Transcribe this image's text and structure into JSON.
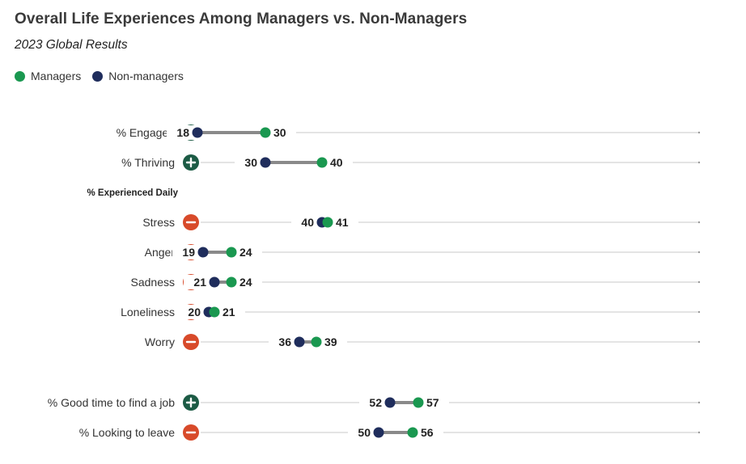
{
  "title": "Overall Life Experiences Among Managers vs. Non-Managers",
  "subtitle": "2023 Global Results",
  "colors": {
    "managers": "#1a9850",
    "non_managers": "#1f2d5c",
    "positive_icon": "#1c5b45",
    "negative_icon": "#d84a2a",
    "connector": "#8a8a8a",
    "axis_line": "#c8c8c8"
  },
  "chart_data": {
    "type": "dot-plot",
    "title": "Overall Life Experiences Among Managers vs. Non-Managers",
    "subtitle": "2023 Global Results",
    "legend": [
      {
        "name": "Managers",
        "color": "#1a9850"
      },
      {
        "name": "Non-managers",
        "color": "#1f2d5c"
      }
    ],
    "legend_position": "top-left",
    "xlim": [
      0,
      100
    ],
    "grid": false,
    "rows": [
      {
        "label": "% Engaged",
        "icon": "plus-icon",
        "managers": 30,
        "non_managers": 18
      },
      {
        "label": "% Thriving",
        "icon": "plus-icon",
        "managers": 40,
        "non_managers": 30
      },
      {
        "label": "% Experienced Daily",
        "section_header": true
      },
      {
        "label": "Stress",
        "icon": "minus-icon",
        "managers": 41,
        "non_managers": 40
      },
      {
        "label": "Anger",
        "icon": "minus-icon",
        "managers": 24,
        "non_managers": 19
      },
      {
        "label": "Sadness",
        "icon": "minus-icon",
        "managers": 24,
        "non_managers": 21
      },
      {
        "label": "Loneliness",
        "icon": "minus-icon",
        "managers": 21,
        "non_managers": 20
      },
      {
        "label": "Worry",
        "icon": "minus-icon",
        "managers": 39,
        "non_managers": 36
      },
      {
        "label": "% Good time to find a job",
        "icon": "plus-icon",
        "managers": 57,
        "non_managers": 52
      },
      {
        "label": "% Looking to leave",
        "icon": "minus-icon",
        "managers": 56,
        "non_managers": 50
      }
    ]
  }
}
